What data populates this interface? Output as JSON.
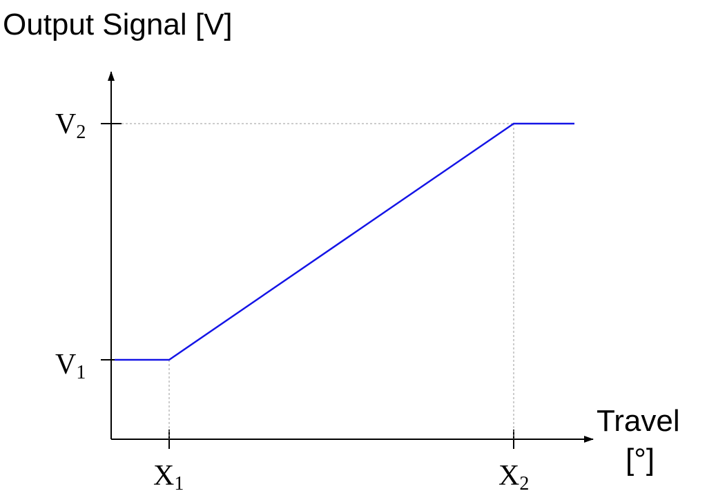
{
  "chart_data": {
    "type": "line",
    "ylabel": "Output Signal [V]",
    "xlabel_line1": "Travel",
    "xlabel_line2": "[°]",
    "x_ticks": [
      {
        "base": "X",
        "sub": "1"
      },
      {
        "base": "X",
        "sub": "2"
      }
    ],
    "y_ticks": [
      {
        "base": "V",
        "sub": "1"
      },
      {
        "base": "V",
        "sub": "2"
      }
    ],
    "grid": false,
    "reference_lines": "dashed guides from X1 and X2 down to the x-axis and from V2 to the curve",
    "series": [
      {
        "color": "#1414e6",
        "shape": "flat at V1 until X1, linear rise from V1 at X1 to V2 at X2, flat at V2 after X2",
        "points_symbolic": [
          {
            "x": "below X1",
            "y": "V1"
          },
          {
            "x": "X1",
            "y": "V1"
          },
          {
            "x": "X2",
            "y": "V2"
          },
          {
            "x": "beyond X2",
            "y": "V2"
          }
        ]
      }
    ]
  }
}
